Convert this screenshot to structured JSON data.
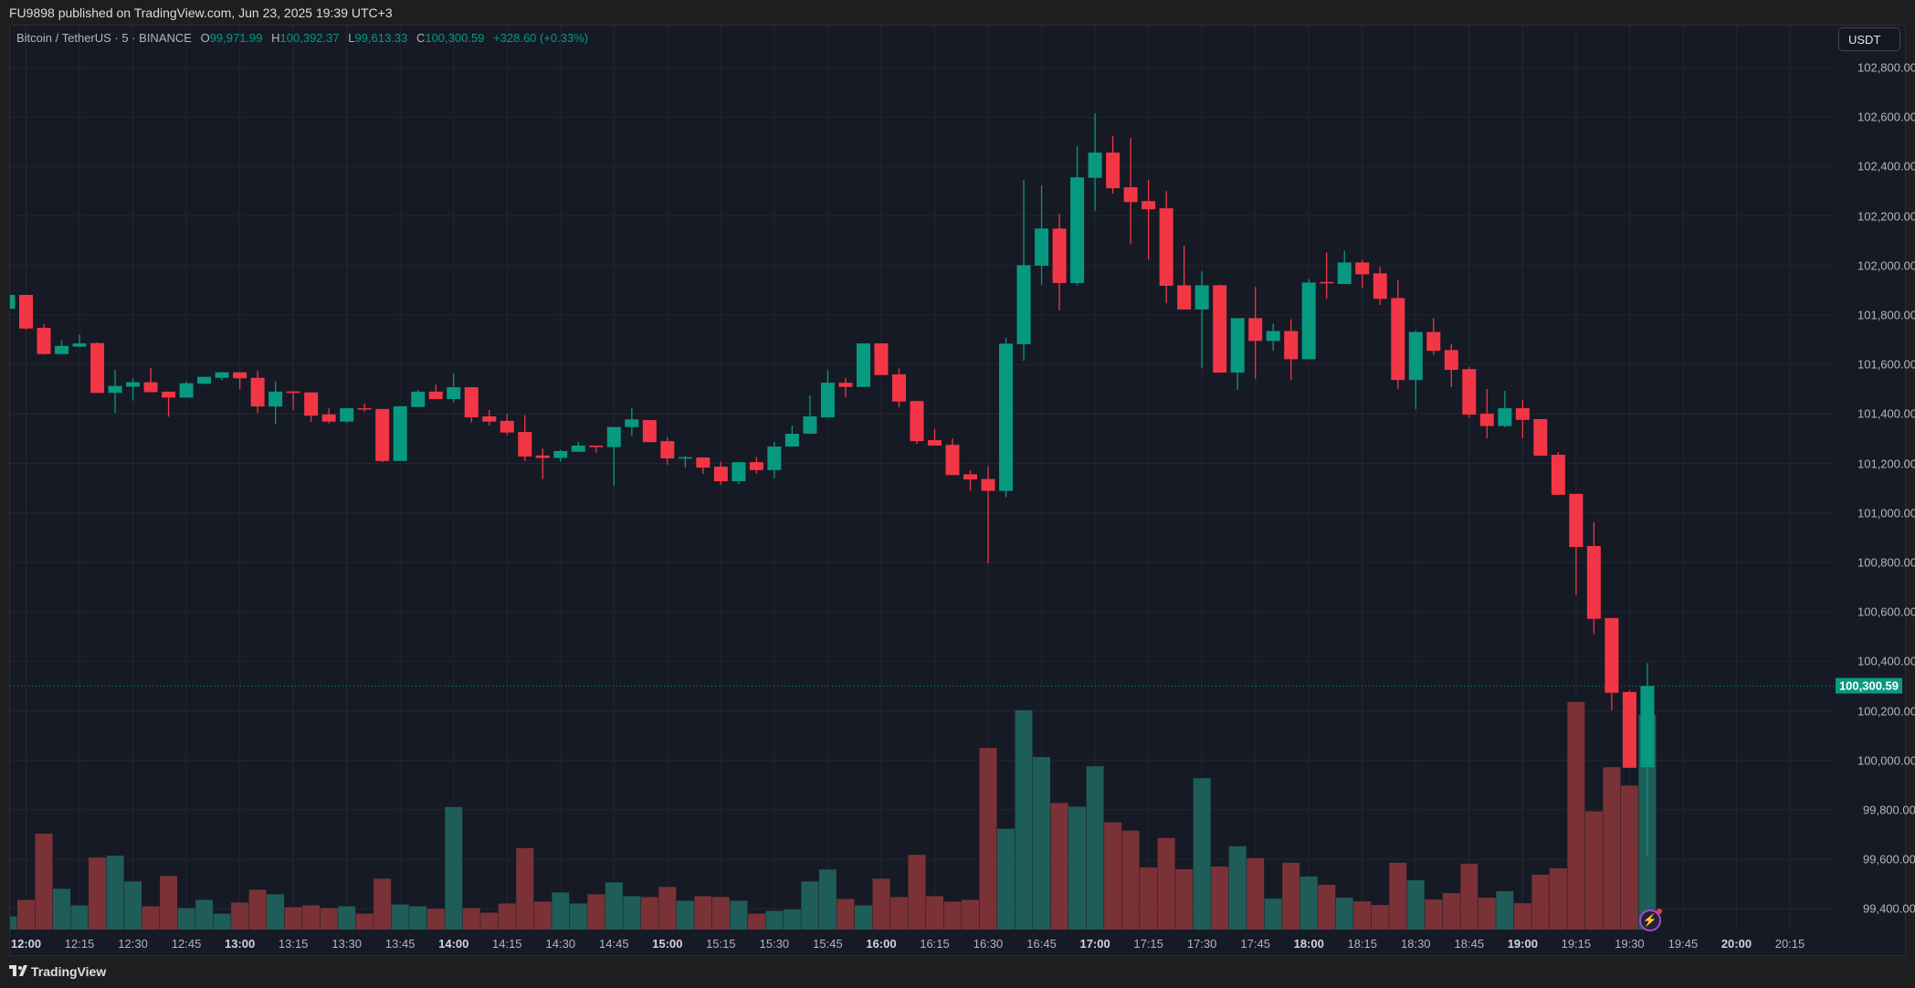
{
  "header": {
    "published": "FU9898 published on TradingView.com, Jun 23, 2025 19:39 UTC+3"
  },
  "legend": {
    "symbol": "Bitcoin / TetherUS · 5 · BINANCE",
    "o_label": "O",
    "o_value": "99,971.99",
    "h_label": "H",
    "h_value": "100,392.37",
    "l_label": "L",
    "l_value": "99,613.33",
    "c_label": "C",
    "c_value": "100,300.59",
    "change": "+328.60 (+0.33%)"
  },
  "currency_button": "USDT",
  "last_price_label": "100,300.59",
  "price_axis": [
    "102,800.00",
    "102,600.00",
    "102,400.00",
    "102,200.00",
    "102,000.00",
    "101,800.00",
    "101,600.00",
    "101,400.00",
    "101,200.00",
    "101,000.00",
    "100,800.00",
    "100,600.00",
    "100,400.00",
    "100,200.00",
    "100,000.00",
    "99,800.00",
    "99,600.00",
    "99,400.00"
  ],
  "time_axis": [
    "12:00",
    "12:15",
    "12:30",
    "12:45",
    "13:00",
    "13:15",
    "13:30",
    "13:45",
    "14:00",
    "14:15",
    "14:30",
    "14:45",
    "15:00",
    "15:15",
    "15:30",
    "15:45",
    "16:00",
    "16:15",
    "16:30",
    "16:45",
    "17:00",
    "17:15",
    "17:30",
    "17:45",
    "18:00",
    "18:15",
    "18:30",
    "18:45",
    "19:00",
    "19:15",
    "19:30",
    "19:45",
    "20:00",
    "20:15"
  ],
  "footer": {
    "brand": "TradingView"
  },
  "colors": {
    "up": "#089981",
    "down": "#f23645",
    "vol_up": "#1f5d59",
    "vol_down": "#7a3237",
    "grid": "#222632",
    "bg": "#161a25"
  },
  "chart_data": {
    "type": "candlestick",
    "title": "Bitcoin / TetherUS · 5 · BINANCE",
    "interval_minutes": 5,
    "first_bar_time": "11:55",
    "ylim": [
      99300,
      102900
    ],
    "last_price": 100300.59,
    "ohlc": [
      [
        101825,
        101881,
        101825,
        101881
      ],
      [
        101881,
        101881,
        101740,
        101745
      ],
      [
        101748,
        101763,
        101640,
        101642
      ],
      [
        101642,
        101697,
        101642,
        101675
      ],
      [
        101672,
        101721,
        101670,
        101685
      ],
      [
        101686,
        101690,
        101485,
        101485
      ],
      [
        101485,
        101579,
        101404,
        101513
      ],
      [
        101510,
        101542,
        101454,
        101528
      ],
      [
        101528,
        101586,
        101488,
        101488
      ],
      [
        101490,
        101490,
        101389,
        101466
      ],
      [
        101466,
        101531,
        101466,
        101524
      ],
      [
        101522,
        101550,
        101520,
        101550
      ],
      [
        101546,
        101570,
        101536,
        101568
      ],
      [
        101568,
        101568,
        101500,
        101544
      ],
      [
        101546,
        101575,
        101404,
        101430
      ],
      [
        101430,
        101531,
        101359,
        101490
      ],
      [
        101491,
        101491,
        101415,
        101485
      ],
      [
        101487,
        101487,
        101368,
        101393
      ],
      [
        101398,
        101423,
        101362,
        101369
      ],
      [
        101369,
        101423,
        101362,
        101423
      ],
      [
        101423,
        101442,
        101410,
        101420
      ],
      [
        101420,
        101420,
        101205,
        101210
      ],
      [
        101210,
        101431,
        101210,
        101431
      ],
      [
        101428,
        101497,
        101428,
        101490
      ],
      [
        101490,
        101519,
        101460,
        101460
      ],
      [
        101460,
        101563,
        101447,
        101508
      ],
      [
        101508,
        101508,
        101366,
        101386
      ],
      [
        101390,
        101416,
        101353,
        101369
      ],
      [
        101372,
        101400,
        101314,
        101325
      ],
      [
        101327,
        101395,
        101210,
        101228
      ],
      [
        101232,
        101260,
        101137,
        101222
      ],
      [
        101222,
        101256,
        101207,
        101250
      ],
      [
        101247,
        101287,
        101247,
        101272
      ],
      [
        101272,
        101272,
        101244,
        101266
      ],
      [
        101266,
        101347,
        101109,
        101347
      ],
      [
        101347,
        101423,
        101312,
        101378
      ],
      [
        101375,
        101375,
        101286,
        101286
      ],
      [
        101290,
        101306,
        101195,
        101220
      ],
      [
        101221,
        101231,
        101184,
        101225
      ],
      [
        101224,
        101224,
        101158,
        101183
      ],
      [
        101187,
        101206,
        101114,
        101128
      ],
      [
        101128,
        101205,
        101118,
        101205
      ],
      [
        101205,
        101226,
        101158,
        101173
      ],
      [
        101173,
        101286,
        101140,
        101268
      ],
      [
        101268,
        101353,
        101268,
        101320
      ],
      [
        101320,
        101475,
        101320,
        101390
      ],
      [
        101386,
        101577,
        101386,
        101526
      ],
      [
        101526,
        101545,
        101467,
        101509
      ],
      [
        101509,
        101685,
        101509,
        101685
      ],
      [
        101685,
        101685,
        101557,
        101557
      ],
      [
        101560,
        101584,
        101427,
        101450
      ],
      [
        101452,
        101452,
        101280,
        101290
      ],
      [
        101294,
        101340,
        101272,
        101272
      ],
      [
        101275,
        101301,
        101153,
        101153
      ],
      [
        101156,
        101172,
        101089,
        101135
      ],
      [
        101137,
        101189,
        100796,
        101089
      ],
      [
        101089,
        101708,
        101064,
        101684
      ],
      [
        101682,
        102345,
        101615,
        102001
      ],
      [
        101999,
        102323,
        101921,
        102149
      ],
      [
        102149,
        102208,
        101818,
        101929
      ],
      [
        101929,
        102482,
        101919,
        102356
      ],
      [
        102354,
        102615,
        102221,
        102456
      ],
      [
        102456,
        102522,
        102291,
        102312
      ],
      [
        102316,
        102515,
        102086,
        102256
      ],
      [
        102260,
        102345,
        102024,
        102227
      ],
      [
        102231,
        102301,
        101848,
        101918
      ],
      [
        101920,
        102079,
        101822,
        101822
      ],
      [
        101822,
        101976,
        101585,
        101920
      ],
      [
        101920,
        101923,
        101567,
        101567
      ],
      [
        101567,
        101787,
        101497,
        101787
      ],
      [
        101787,
        101913,
        101541,
        101695
      ],
      [
        101695,
        101765,
        101655,
        101735
      ],
      [
        101735,
        101783,
        101537,
        101621
      ],
      [
        101621,
        101945,
        101621,
        101931
      ],
      [
        101933,
        102052,
        101865,
        101929
      ],
      [
        101925,
        102060,
        101925,
        102012
      ],
      [
        102012,
        102023,
        101910,
        101964
      ],
      [
        101968,
        101994,
        101840,
        101865
      ],
      [
        101868,
        101941,
        101500,
        101537
      ],
      [
        101537,
        101737,
        101418,
        101731
      ],
      [
        101731,
        101787,
        101639,
        101655
      ],
      [
        101658,
        101684,
        101508,
        101578
      ],
      [
        101581,
        101590,
        101384,
        101397
      ],
      [
        101401,
        101501,
        101301,
        101351
      ],
      [
        101351,
        101493,
        101347,
        101423
      ],
      [
        101423,
        101456,
        101301,
        101376
      ],
      [
        101379,
        101379,
        101231,
        101231
      ],
      [
        101235,
        101246,
        101073,
        101073
      ],
      [
        101077,
        101077,
        100668,
        100862
      ],
      [
        100866,
        100962,
        100510,
        100572
      ],
      [
        100575,
        100575,
        100203,
        100273
      ],
      [
        100276,
        100282,
        99970,
        99970
      ],
      [
        99971.99,
        100392.37,
        99613.33,
        100300.59
      ]
    ],
    "volume_relative": [
      43,
      97,
      313,
      133,
      79,
      235,
      241,
      157,
      76,
      175,
      70,
      97,
      52,
      88,
      130,
      115,
      73,
      79,
      70,
      76,
      52,
      166,
      82,
      76,
      68,
      400,
      70,
      55,
      85,
      266,
      91,
      121,
      85,
      115,
      154,
      109,
      106,
      139,
      94,
      109,
      106,
      94,
      52,
      61,
      65,
      157,
      196,
      100,
      79,
      166,
      106,
      244,
      109,
      91,
      97,
      593,
      329,
      716,
      563,
      413,
      401,
      533,
      350,
      323,
      203,
      299,
      197,
      494,
      206,
      272,
      233,
      101,
      218,
      173,
      146,
      104,
      92,
      80,
      218,
      161,
      98,
      119,
      215,
      104,
      125,
      86,
      179,
      200,
      743,
      386,
      530,
      470,
      701
    ]
  }
}
